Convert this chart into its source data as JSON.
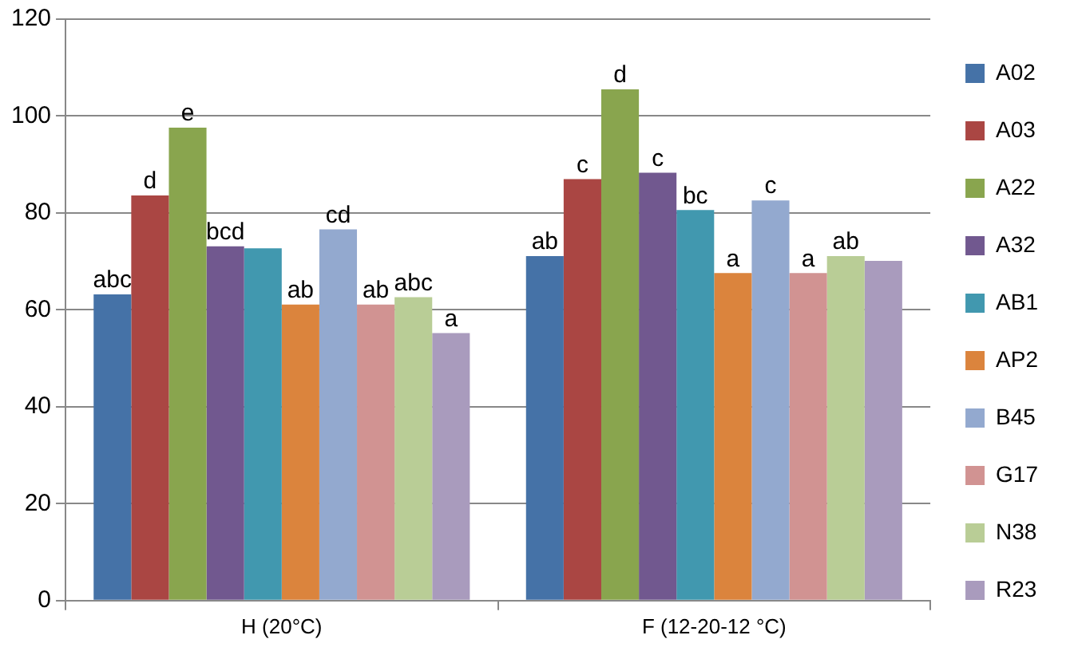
{
  "chart_data": {
    "type": "bar",
    "categories": [
      "H (20°C)",
      "F (12-20-12 °C)"
    ],
    "series": [
      {
        "name": "A02",
        "color": "#4572a7",
        "values": [
          63.2,
          71.1
        ],
        "value_labels": [
          "abc",
          "ab"
        ]
      },
      {
        "name": "A03",
        "color": "#aa4643",
        "values": [
          83.6,
          87.0
        ],
        "value_labels": [
          "d",
          "c"
        ]
      },
      {
        "name": "A22",
        "color": "#89a54e",
        "values": [
          97.6,
          105.5
        ],
        "value_labels": [
          "e",
          "d"
        ]
      },
      {
        "name": "A32",
        "color": "#71588f",
        "values": [
          73.1,
          88.3
        ],
        "value_labels": [
          "bcd",
          "c"
        ]
      },
      {
        "name": "AB1",
        "color": "#4198af",
        "values": [
          72.7,
          80.6
        ],
        "value_labels": [
          null,
          "bc"
        ]
      },
      {
        "name": "AP2",
        "color": "#db843d",
        "values": [
          61.1,
          67.6
        ],
        "value_labels": [
          "ab",
          "a"
        ]
      },
      {
        "name": "B45",
        "color": "#93a9cf",
        "values": [
          76.6,
          82.6
        ],
        "value_labels": [
          "cd",
          "c"
        ]
      },
      {
        "name": "G17",
        "color": "#d19392",
        "values": [
          61.1,
          67.6
        ],
        "value_labels": [
          "ab",
          "a"
        ]
      },
      {
        "name": "N38",
        "color": "#b9cd96",
        "values": [
          62.6,
          71.1
        ],
        "value_labels": [
          "abc",
          "ab"
        ]
      },
      {
        "name": "R23",
        "color": "#a99bbd",
        "values": [
          55.2,
          70.1
        ],
        "value_labels": [
          "a",
          null
        ]
      }
    ],
    "ylim": [
      0,
      120
    ],
    "yticks": [
      0,
      20,
      40,
      60,
      80,
      100,
      120
    ],
    "grid": "y",
    "legend": "right"
  }
}
